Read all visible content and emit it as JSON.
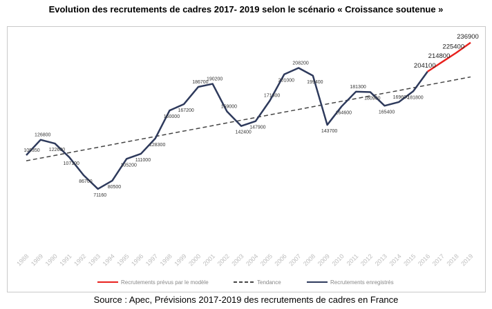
{
  "title": "Evolution des recrutements de cadres 2017- 2019 selon le scénario « Croissance soutenue »",
  "source": "Source : Apec, Prévisions 2017-2019 des recrutements de cadres en France",
  "chart_data": {
    "type": "line",
    "x": [
      "1988",
      "1989",
      "1990",
      "1991",
      "1992",
      "1993",
      "1994",
      "1995",
      "1996",
      "1997",
      "1998",
      "1999",
      "2000",
      "2001",
      "2002",
      "2003",
      "2004",
      "2005",
      "2006",
      "2007",
      "2008",
      "2009",
      "2010",
      "2011",
      "2012",
      "2013",
      "2014",
      "2015",
      "2016",
      "2017",
      "2018",
      "2019"
    ],
    "series": [
      {
        "name": "Recrutements enregistrés",
        "color": "#2e3a5c",
        "values": [
          109350,
          126800,
          122600,
          107100,
          86700,
          71160,
          80500,
          105200,
          111000,
          128300,
          160000,
          167200,
          186700,
          190200,
          159000,
          142400,
          147900,
          171300,
          201000,
          208200,
          199400,
          143700,
          164600,
          181300,
          180900,
          165400,
          169600,
          181800,
          204100,
          null,
          null,
          null
        ],
        "labels": [
          "109350",
          "126800",
          "122600",
          "107100",
          "86700",
          "71160",
          "80500",
          "105200",
          "111000",
          "128300",
          "160000",
          "167200",
          "186700",
          "190200",
          "159000",
          "142400",
          "147900",
          "171300",
          "201000",
          "208200",
          "199400",
          "143700",
          "164600",
          "181300",
          "180900",
          "165400",
          "169600",
          "181800",
          "",
          null,
          null,
          null
        ]
      },
      {
        "name": "Recrutements prévus par le modèle",
        "color": "#e8211d",
        "values": [
          null,
          null,
          null,
          null,
          null,
          null,
          null,
          null,
          null,
          null,
          null,
          null,
          null,
          null,
          null,
          null,
          null,
          null,
          null,
          null,
          null,
          null,
          null,
          null,
          null,
          null,
          null,
          null,
          204100,
          214800,
          225400,
          236900
        ],
        "labels": [
          null,
          null,
          null,
          null,
          null,
          null,
          null,
          null,
          null,
          null,
          null,
          null,
          null,
          null,
          null,
          null,
          null,
          null,
          null,
          null,
          null,
          null,
          null,
          null,
          null,
          null,
          null,
          null,
          "204100",
          "214800",
          "225400",
          "236900"
        ]
      },
      {
        "name": "Tendance",
        "color": "#444444",
        "dashed": true,
        "start": [
          1988,
          103000
        ],
        "end": [
          2019,
          198000
        ]
      }
    ],
    "legend": [
      {
        "name": "Recrutements prévus par le modèle",
        "color": "#e8211d",
        "style": "solid"
      },
      {
        "name": "Tendance",
        "color": "#444444",
        "style": "dashed"
      },
      {
        "name": "Recrutements enregistrés",
        "color": "#2e3a5c",
        "style": "solid"
      }
    ],
    "legend_position": "bottom",
    "ylim": [
      0,
      250000
    ],
    "grid": false
  }
}
